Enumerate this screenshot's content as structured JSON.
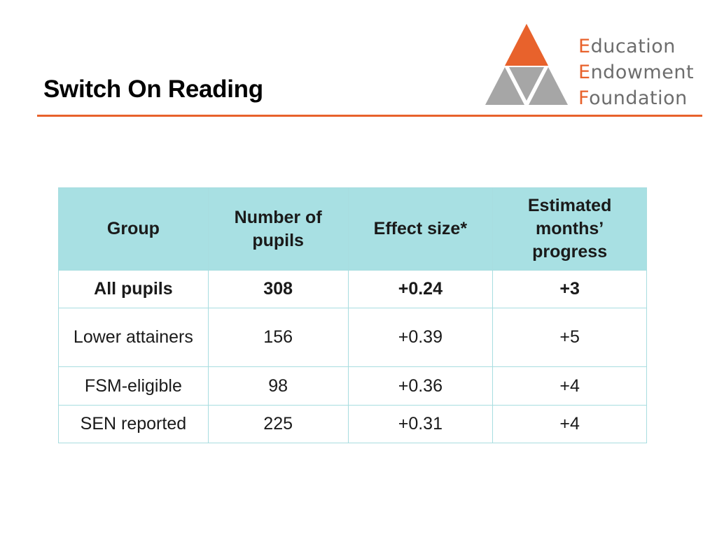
{
  "slide": {
    "title": "Switch On Reading"
  },
  "logo": {
    "line1_cap": "E",
    "line1_rest": "ducation",
    "line2_cap": "E",
    "line2_rest": "ndowment",
    "line3_cap": "F",
    "line3_rest": "oundation",
    "colors": {
      "orange": "#e8622c",
      "grey": "#a6a6a6",
      "text": "#6d6d6d"
    }
  },
  "table": {
    "headers": [
      "Group",
      "Number of pupils",
      "Effect size*",
      "Estimated months’ progress"
    ],
    "rows": [
      [
        "All pupils",
        "308",
        "+0.24",
        "+3"
      ],
      [
        "Lower attainers",
        "156",
        "+0.39",
        "+5"
      ],
      [
        "FSM-eligible",
        "98",
        "+0.36",
        "+4"
      ],
      [
        "SEN reported",
        "225",
        "+0.31",
        "+4"
      ]
    ],
    "header_color": "#a8e0e3",
    "border_color": "#a8dde0"
  }
}
